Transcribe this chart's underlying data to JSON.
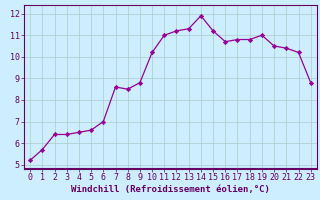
{
  "x": [
    0,
    1,
    2,
    3,
    4,
    5,
    6,
    7,
    8,
    9,
    10,
    11,
    12,
    13,
    14,
    15,
    16,
    17,
    18,
    19,
    20,
    21,
    22,
    23
  ],
  "y": [
    5.2,
    5.7,
    6.4,
    6.4,
    6.5,
    6.6,
    7.0,
    8.6,
    8.5,
    8.8,
    10.2,
    11.0,
    11.2,
    11.3,
    11.9,
    11.2,
    10.7,
    10.8,
    10.8,
    11.0,
    10.5,
    10.4,
    10.2,
    8.8
  ],
  "line_color": "#990099",
  "marker": "D",
  "marker_size": 2.2,
  "bg_color": "#cceeff",
  "grid_color": "#aacccc",
  "xlabel": "Windchill (Refroidissement éolien,°C)",
  "xlabel_color": "#660066",
  "xlabel_fontsize": 6.5,
  "tick_color": "#660066",
  "tick_fontsize": 6,
  "ylim": [
    4.8,
    12.4
  ],
  "xlim": [
    -0.5,
    23.5
  ],
  "yticks": [
    5,
    6,
    7,
    8,
    9,
    10,
    11,
    12
  ],
  "xticks": [
    0,
    1,
    2,
    3,
    4,
    5,
    6,
    7,
    8,
    9,
    10,
    11,
    12,
    13,
    14,
    15,
    16,
    17,
    18,
    19,
    20,
    21,
    22,
    23
  ],
  "spine_color": "#660066",
  "axis_bg": "#cceeff"
}
